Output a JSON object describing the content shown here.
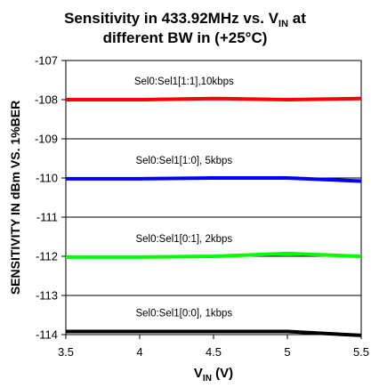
{
  "chart_data": {
    "type": "line",
    "title_line1": "Sensitivity in 433.92MHz vs. V",
    "title_line1_sub": "IN",
    "title_line1_end": " at",
    "title_line2": "different BW in (+25°C)",
    "xlabel_main": "V",
    "xlabel_sub": "IN",
    "xlabel_unit": " (V)",
    "ylabel": "SENSITIVITY IN dBm VS. 1%BER",
    "xlim": [
      3.5,
      5.5
    ],
    "ylim": [
      -114,
      -107
    ],
    "xticks": [
      "3.5",
      "4",
      "4.5",
      "5",
      "5.5"
    ],
    "yticks": [
      "-107",
      "-108",
      "-109",
      "-110",
      "-111",
      "-112",
      "-113",
      "-114"
    ],
    "grid": "horizontal",
    "series": [
      {
        "name": "Sel0:Sel1[1:1],10kbps",
        "color": "#ff0000",
        "x": [
          3.5,
          4,
          4.5,
          5,
          5.5
        ],
        "y": [
          -108.0,
          -108.0,
          -107.97,
          -108.0,
          -107.97
        ]
      },
      {
        "name": "Sel0:Sel1[1:0], 5kbps",
        "color": "#0000ff",
        "x": [
          3.5,
          4,
          4.5,
          5,
          5.5
        ],
        "y": [
          -110.02,
          -110.02,
          -110.0,
          -110.0,
          -110.08
        ]
      },
      {
        "name": "Sel0:Sel1[0:1], 2kbps",
        "color": "#00ff00",
        "x": [
          3.5,
          4,
          4.5,
          5,
          5.5
        ],
        "y": [
          -112.02,
          -112.02,
          -112.0,
          -111.93,
          -112.0
        ]
      },
      {
        "name": "Sel0:Sel1[0:0], 1kbps",
        "color": "#000000",
        "x": [
          3.5,
          4,
          4.5,
          5,
          5.5
        ],
        "y": [
          -113.92,
          -113.92,
          -113.92,
          -113.92,
          -114.02
        ]
      }
    ]
  }
}
